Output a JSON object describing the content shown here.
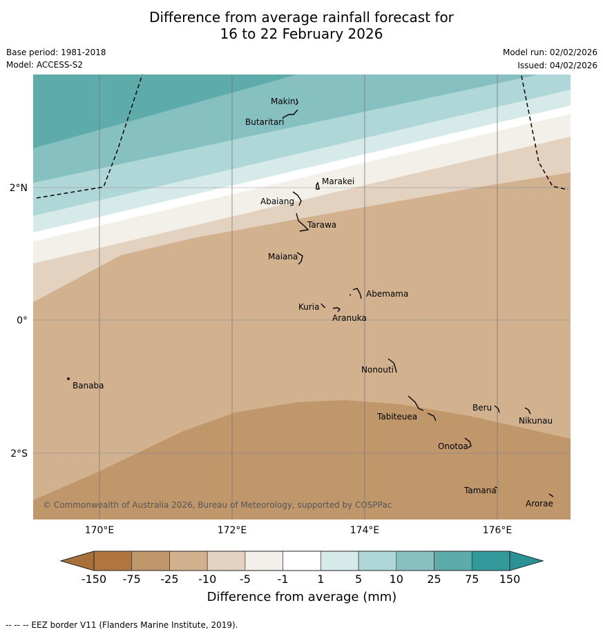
{
  "title": {
    "line1": "Difference from average rainfall forecast for",
    "line2": "16 to 22 February 2026"
  },
  "meta": {
    "base_period": "Base period: 1981-2018",
    "model": "Model: ACCESS-S2",
    "model_run": "Model run: 02/02/2026",
    "issued": "Issued: 04/02/2026"
  },
  "axes": {
    "lon_labels": [
      "170°E",
      "172°E",
      "174°E",
      "176°E"
    ],
    "lat_labels": [
      "2°N",
      "0°",
      "2°S"
    ]
  },
  "places": [
    "Makin",
    "Butaritari",
    "Marakei",
    "Abaiang",
    "Tarawa",
    "Maiana",
    "Abemama",
    "Kuria",
    "Aranuka",
    "Nonouti",
    "Banaba",
    "Beru",
    "Nikunau",
    "Tabiteuea",
    "Onotoa",
    "Tamana",
    "Arorae"
  ],
  "copyright": "© Commonwealth of Australia 2026, Bureau of Meteorology, supported by COSPPac",
  "colorbar": {
    "ticks": [
      "-150",
      "-75",
      "-25",
      "-10",
      "-5",
      "-1",
      "1",
      "5",
      "10",
      "25",
      "75",
      "150"
    ],
    "colors": [
      "#b0763f",
      "#c0976a",
      "#d2b18f",
      "#e4d2c1",
      "#f3efe9",
      "#ffffff",
      "#d6eaea",
      "#afd7d7",
      "#86c0c0",
      "#5eabab",
      "#33999a"
    ],
    "label": "Difference from average (mm)"
  },
  "footer": "--  --  -- EEZ border V11 (Flanders Marine Institute, 2019)."
}
